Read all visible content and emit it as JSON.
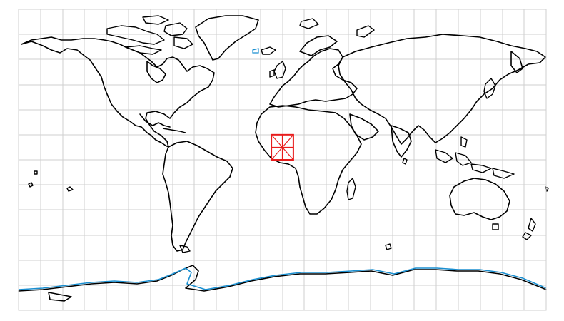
{
  "map": {
    "projection": "equirectangular",
    "extent": {
      "lon": [
        -180,
        180
      ],
      "lat": [
        -90,
        90
      ]
    },
    "grid_spacing_deg": 15,
    "grid_color": "#cfcfcf",
    "coastline_color": "#000000",
    "ice_edge_color": "#1b8fd0"
  },
  "selection": {
    "label": "selected-grid-cell",
    "lon": [
      -7.5,
      7.5
    ],
    "lat": [
      0,
      15
    ],
    "subdivisions": 2,
    "color": "#e81c1c"
  }
}
